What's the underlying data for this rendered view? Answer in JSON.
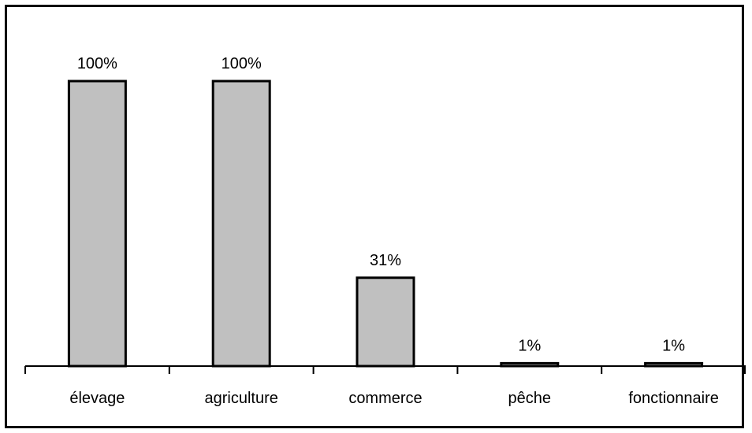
{
  "chart_data": {
    "type": "bar",
    "categories": [
      "élevage",
      "agriculture",
      "commerce",
      "pêche",
      "fonctionnaire"
    ],
    "values": [
      100,
      100,
      31,
      1,
      1
    ],
    "data_labels": [
      "100%",
      "100%",
      "31%",
      "1%",
      "1%"
    ],
    "title": "",
    "xlabel": "",
    "ylabel": "",
    "ylim": [
      0,
      100
    ],
    "grid": false,
    "legend": "none",
    "colors": {
      "bar_fill": "#c0c0c0",
      "bar_stroke": "#000000",
      "axis": "#000000"
    }
  }
}
